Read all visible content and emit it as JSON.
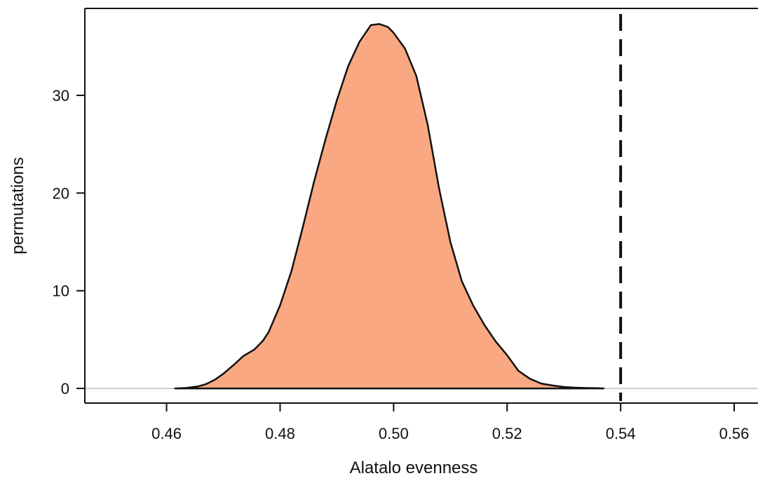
{
  "chart_data": {
    "type": "area",
    "title": "",
    "xlabel": "Alatalo evenness",
    "ylabel": "permutations",
    "xlim": [
      0.4456,
      0.5642
    ],
    "ylim": [
      -1.5,
      38.9
    ],
    "xticks": [
      0.46,
      0.48,
      0.5,
      0.52,
      0.54,
      0.56
    ],
    "xtick_labels": [
      "0.46",
      "0.48",
      "0.50",
      "0.52",
      "0.54",
      "0.56"
    ],
    "yticks": [
      0,
      10,
      20,
      30
    ],
    "ytick_labels": [
      "0",
      "10",
      "20",
      "30"
    ],
    "grid": false,
    "legend": "none",
    "baseline": 0,
    "observed_value": 0.54,
    "observed_line_style": "dashed",
    "fill_color": "#f9a882",
    "outline_color": "#111111",
    "baseline_color": "#cccccc",
    "series": [
      {
        "x": [
          0.4615,
          0.4635,
          0.4655,
          0.467,
          0.4685,
          0.47,
          0.472,
          0.4735,
          0.4755,
          0.477,
          0.478,
          0.48,
          0.482,
          0.484,
          0.486,
          0.488,
          0.49,
          0.492,
          0.494,
          0.496,
          0.4975,
          0.499,
          0.5,
          0.502,
          0.504,
          0.506,
          0.508,
          0.51,
          0.512,
          0.514,
          0.516,
          0.518,
          0.52,
          0.522,
          0.524,
          0.526,
          0.528,
          0.53,
          0.532,
          0.534,
          0.536,
          0.537
        ],
        "y": [
          0.0,
          0.05,
          0.2,
          0.45,
          0.9,
          1.5,
          2.5,
          3.3,
          4.0,
          4.9,
          5.8,
          8.5,
          12.0,
          16.5,
          21.2,
          25.5,
          29.5,
          33.0,
          35.5,
          37.2,
          37.3,
          37.0,
          36.4,
          34.8,
          32.0,
          27.0,
          20.5,
          15.0,
          11.0,
          8.5,
          6.5,
          4.8,
          3.4,
          1.8,
          1.0,
          0.5,
          0.3,
          0.15,
          0.08,
          0.04,
          0.02,
          0.0
        ]
      }
    ]
  }
}
